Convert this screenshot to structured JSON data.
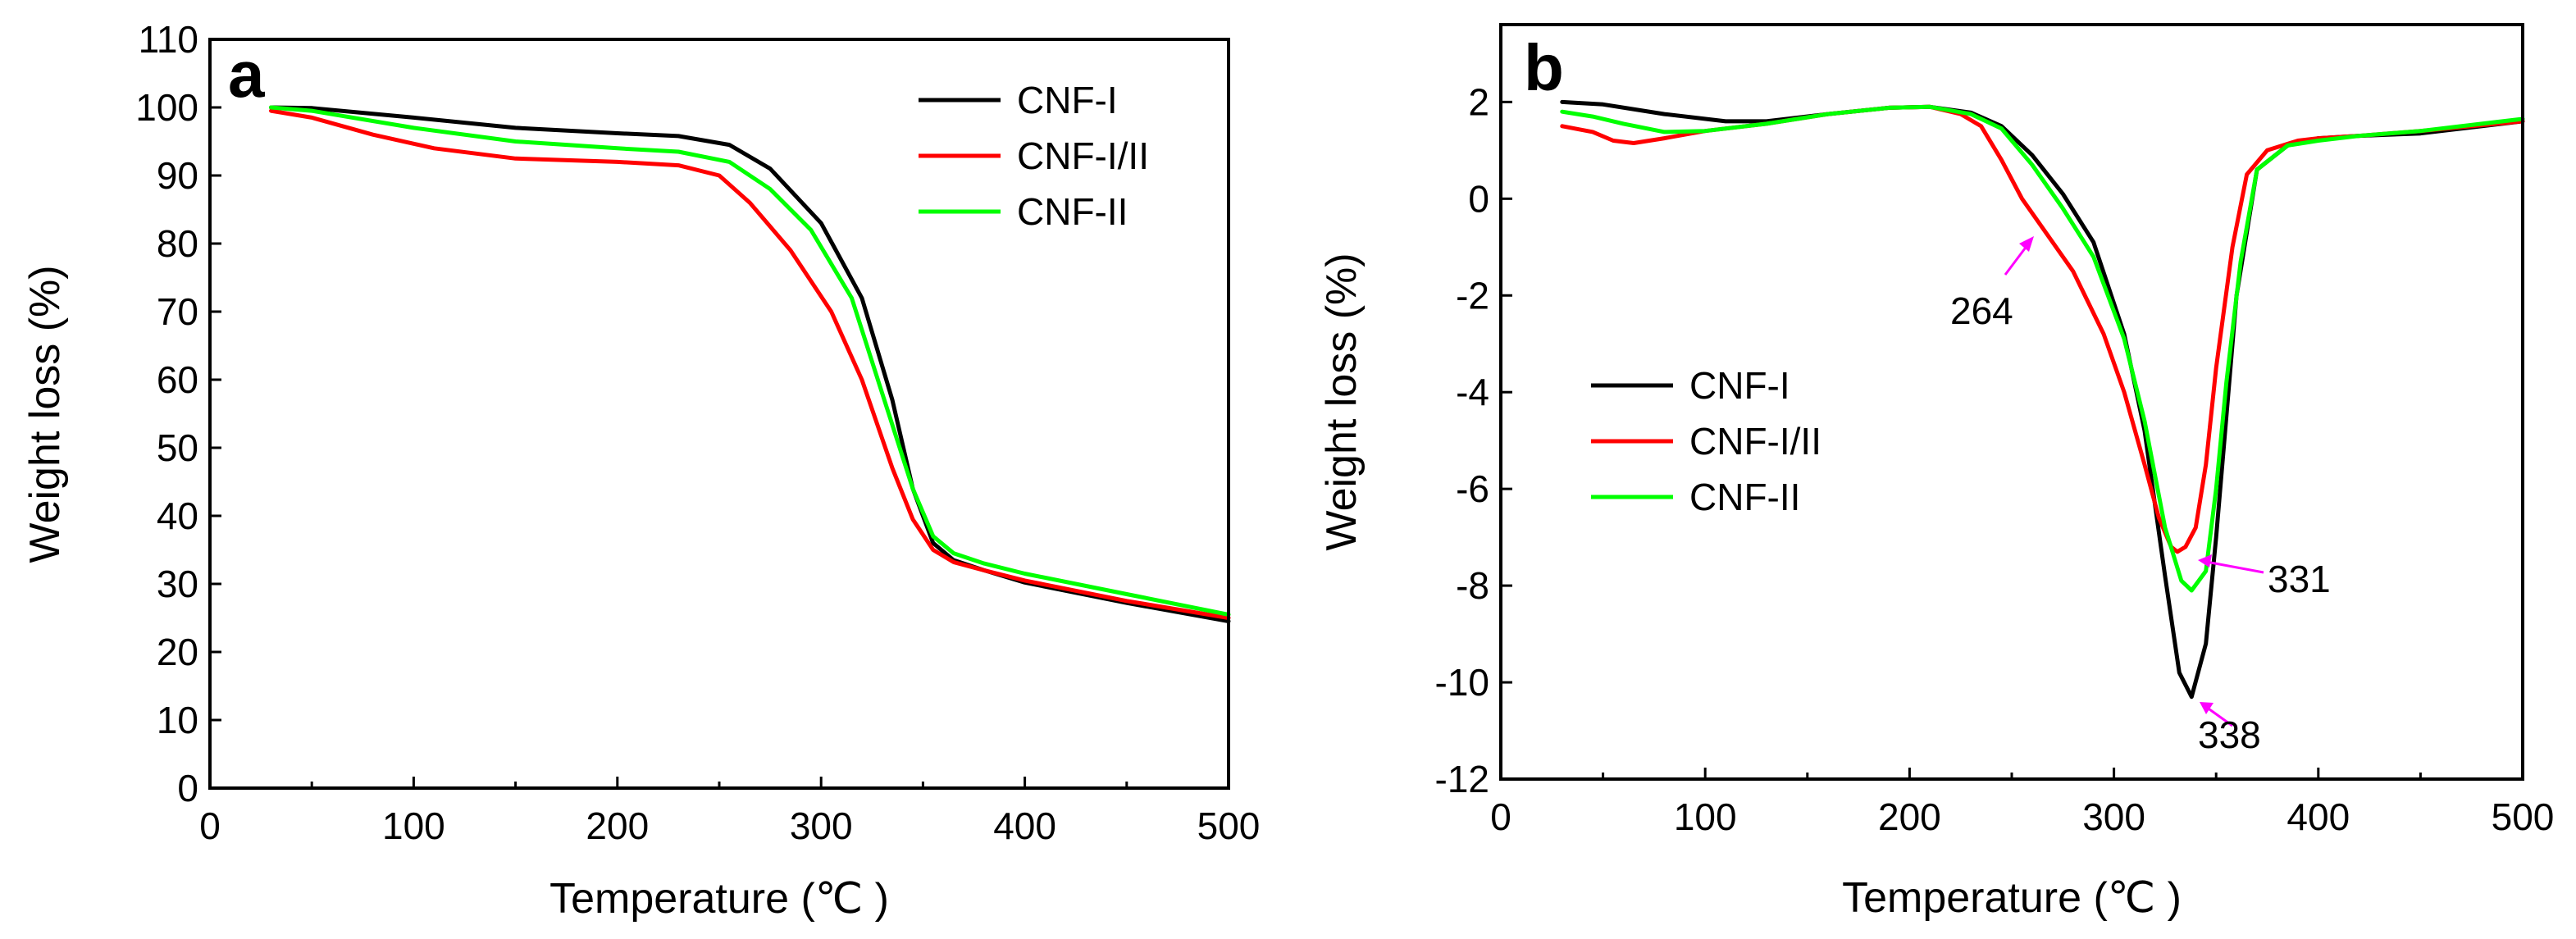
{
  "chart_data": [
    {
      "panel": "a",
      "type": "line",
      "xlabel": "Temperature (℃ )",
      "ylabel": "Weight  loss (%)",
      "xlim": [
        0,
        500
      ],
      "ylim": [
        0,
        110
      ],
      "xticks": [
        0,
        100,
        200,
        300,
        400,
        500
      ],
      "yticks": [
        0,
        10,
        20,
        30,
        40,
        50,
        60,
        70,
        80,
        90,
        100,
        110
      ],
      "legend_position": "top-right",
      "series": [
        {
          "name": "CNF-I",
          "color": "#000000",
          "x": [
            30,
            50,
            100,
            150,
            200,
            230,
            255,
            275,
            300,
            320,
            335,
            345,
            355,
            365,
            380,
            400,
            450,
            500
          ],
          "y": [
            100,
            99.9,
            98.5,
            97,
            96.2,
            95.8,
            94.5,
            91,
            83,
            72,
            57,
            44,
            36,
            33.5,
            32,
            30.2,
            27.2,
            24.5
          ]
        },
        {
          "name": "CNF-I/II",
          "color": "#ff0000",
          "x": [
            30,
            50,
            80,
            110,
            150,
            200,
            230,
            250,
            265,
            285,
            305,
            320,
            335,
            345,
            355,
            365,
            380,
            400,
            450,
            500
          ],
          "y": [
            99.5,
            98.5,
            96,
            94,
            92.5,
            92,
            91.5,
            90,
            86,
            79,
            70,
            60,
            47,
            39.5,
            35,
            33.2,
            32,
            30.5,
            27.5,
            25
          ]
        },
        {
          "name": "CNF-II",
          "color": "#00ff00",
          "x": [
            30,
            50,
            100,
            150,
            200,
            230,
            255,
            275,
            295,
            315,
            330,
            345,
            355,
            365,
            380,
            400,
            450,
            500
          ],
          "y": [
            100,
            99.5,
            97,
            95,
            94,
            93.5,
            92,
            88,
            82,
            72,
            58,
            44,
            37,
            34.5,
            33,
            31.5,
            28.5,
            25.5
          ]
        }
      ]
    },
    {
      "panel": "b",
      "type": "line",
      "xlabel": "Temperature (℃ )",
      "ylabel": "Weight  loss (%)",
      "xlim": [
        0,
        500
      ],
      "ylim": [
        -12,
        3.6
      ],
      "xticks": [
        0,
        100,
        200,
        300,
        400,
        500
      ],
      "yticks": [
        -12,
        -10,
        -8,
        -6,
        -4,
        -2,
        0,
        2
      ],
      "legend_position": "center-left",
      "series": [
        {
          "name": "CNF-I",
          "color": "#000000",
          "x": [
            30,
            50,
            80,
            110,
            130,
            160,
            190,
            210,
            230,
            245,
            260,
            275,
            290,
            305,
            315,
            325,
            332,
            338,
            345,
            350,
            355,
            360,
            370,
            385,
            400,
            420,
            450,
            500
          ],
          "y": [
            2.0,
            1.95,
            1.75,
            1.6,
            1.6,
            1.75,
            1.88,
            1.9,
            1.78,
            1.5,
            0.9,
            0.1,
            -0.9,
            -2.8,
            -4.8,
            -7.8,
            -9.8,
            -10.3,
            -9.2,
            -7.0,
            -4.5,
            -2.0,
            0.6,
            1.1,
            1.25,
            1.3,
            1.35,
            1.6
          ]
        },
        {
          "name": "CNF-I/II",
          "color": "#ff0000",
          "x": [
            30,
            45,
            55,
            65,
            80,
            100,
            130,
            160,
            190,
            210,
            225,
            235,
            245,
            255,
            265,
            280,
            295,
            305,
            315,
            322,
            328,
            331,
            335,
            340,
            345,
            350,
            358,
            365,
            375,
            390,
            400,
            420,
            450,
            500
          ],
          "y": [
            1.5,
            1.38,
            1.2,
            1.15,
            1.25,
            1.4,
            1.55,
            1.75,
            1.88,
            1.9,
            1.75,
            1.5,
            0.8,
            0.0,
            -0.6,
            -1.5,
            -2.8,
            -4.0,
            -5.5,
            -6.6,
            -7.2,
            -7.3,
            -7.2,
            -6.8,
            -5.5,
            -3.5,
            -1.0,
            0.5,
            1.0,
            1.2,
            1.25,
            1.3,
            1.4,
            1.6
          ]
        },
        {
          "name": "CNF-II",
          "color": "#00ff00",
          "x": [
            30,
            45,
            60,
            80,
            100,
            130,
            160,
            190,
            210,
            230,
            245,
            260,
            275,
            290,
            305,
            315,
            325,
            333,
            338,
            345,
            350,
            355,
            362,
            370,
            385,
            400,
            420,
            450,
            500
          ],
          "y": [
            1.8,
            1.7,
            1.55,
            1.38,
            1.4,
            1.55,
            1.75,
            1.88,
            1.9,
            1.75,
            1.45,
            0.7,
            -0.2,
            -1.2,
            -2.9,
            -4.6,
            -6.8,
            -7.9,
            -8.1,
            -7.7,
            -6.0,
            -3.8,
            -1.3,
            0.6,
            1.1,
            1.2,
            1.3,
            1.4,
            1.65
          ]
        }
      ],
      "annotations": [
        {
          "text": "264",
          "x": 264,
          "y": -0.45
        },
        {
          "text": "331",
          "x": 331,
          "y": -7.35
        },
        {
          "text": "338",
          "x": 338,
          "y": -10.35
        }
      ]
    }
  ]
}
